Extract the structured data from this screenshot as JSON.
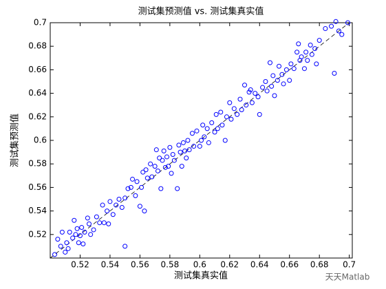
{
  "chart_data": {
    "type": "scatter",
    "title": "测试集预测值 vs. 测试集真实值",
    "x_label": "测试集真实值",
    "y_label": "测试集预测值",
    "color": "#0000ff",
    "reference_line": "y=x",
    "watermark": "天天Matlab",
    "xlim": [
      0.5,
      0.702
    ],
    "ylim": [
      0.5,
      0.7
    ],
    "xticks": [
      0.52,
      0.54,
      0.56,
      0.58,
      0.6,
      0.62,
      0.64,
      0.66,
      0.68,
      0.7
    ],
    "yticks": [
      0.52,
      0.54,
      0.56,
      0.58,
      0.6,
      0.62,
      0.64,
      0.66,
      0.68,
      0.7
    ],
    "x": [
      0.503,
      0.505,
      0.507,
      0.508,
      0.51,
      0.511,
      0.512,
      0.513,
      0.515,
      0.516,
      0.517,
      0.518,
      0.519,
      0.52,
      0.521,
      0.522,
      0.523,
      0.525,
      0.526,
      0.527,
      0.529,
      0.531,
      0.533,
      0.535,
      0.536,
      0.538,
      0.539,
      0.54,
      0.542,
      0.544,
      0.546,
      0.548,
      0.55,
      0.55,
      0.552,
      0.554,
      0.555,
      0.557,
      0.558,
      0.56,
      0.561,
      0.562,
      0.563,
      0.564,
      0.565,
      0.567,
      0.568,
      0.57,
      0.571,
      0.572,
      0.573,
      0.574,
      0.575,
      0.576,
      0.577,
      0.578,
      0.579,
      0.58,
      0.581,
      0.582,
      0.583,
      0.585,
      0.586,
      0.587,
      0.588,
      0.589,
      0.59,
      0.591,
      0.592,
      0.593,
      0.595,
      0.596,
      0.598,
      0.6,
      0.601,
      0.602,
      0.603,
      0.605,
      0.606,
      0.608,
      0.61,
      0.611,
      0.612,
      0.614,
      0.615,
      0.617,
      0.618,
      0.62,
      0.621,
      0.623,
      0.625,
      0.627,
      0.628,
      0.63,
      0.631,
      0.633,
      0.634,
      0.635,
      0.637,
      0.639,
      0.64,
      0.642,
      0.644,
      0.645,
      0.647,
      0.648,
      0.649,
      0.65,
      0.652,
      0.653,
      0.655,
      0.656,
      0.658,
      0.66,
      0.661,
      0.663,
      0.665,
      0.666,
      0.667,
      0.668,
      0.67,
      0.671,
      0.672,
      0.674,
      0.675,
      0.677,
      0.678,
      0.68,
      0.684,
      0.688,
      0.69,
      0.691,
      0.693,
      0.695,
      0.699
    ],
    "y": [
      0.503,
      0.516,
      0.51,
      0.522,
      0.505,
      0.513,
      0.508,
      0.522,
      0.517,
      0.532,
      0.52,
      0.525,
      0.513,
      0.519,
      0.526,
      0.512,
      0.522,
      0.534,
      0.529,
      0.52,
      0.524,
      0.535,
      0.53,
      0.545,
      0.53,
      0.54,
      0.529,
      0.548,
      0.537,
      0.545,
      0.55,
      0.543,
      0.551,
      0.51,
      0.559,
      0.56,
      0.567,
      0.553,
      0.565,
      0.544,
      0.56,
      0.573,
      0.54,
      0.575,
      0.568,
      0.58,
      0.569,
      0.578,
      0.592,
      0.574,
      0.585,
      0.559,
      0.583,
      0.591,
      0.577,
      0.586,
      0.578,
      0.594,
      0.572,
      0.588,
      0.583,
      0.559,
      0.596,
      0.59,
      0.578,
      0.598,
      0.591,
      0.585,
      0.6,
      0.592,
      0.606,
      0.595,
      0.608,
      0.595,
      0.6,
      0.613,
      0.603,
      0.61,
      0.598,
      0.615,
      0.607,
      0.622,
      0.61,
      0.624,
      0.613,
      0.6,
      0.62,
      0.632,
      0.618,
      0.627,
      0.622,
      0.635,
      0.626,
      0.647,
      0.63,
      0.641,
      0.643,
      0.632,
      0.64,
      0.637,
      0.622,
      0.645,
      0.65,
      0.642,
      0.666,
      0.646,
      0.655,
      0.638,
      0.651,
      0.663,
      0.656,
      0.648,
      0.66,
      0.651,
      0.665,
      0.661,
      0.675,
      0.682,
      0.668,
      0.671,
      0.661,
      0.675,
      0.668,
      0.681,
      0.673,
      0.678,
      0.665,
      0.685,
      0.695,
      0.697,
      0.657,
      0.701,
      0.693,
      0.69,
      0.7
    ]
  }
}
